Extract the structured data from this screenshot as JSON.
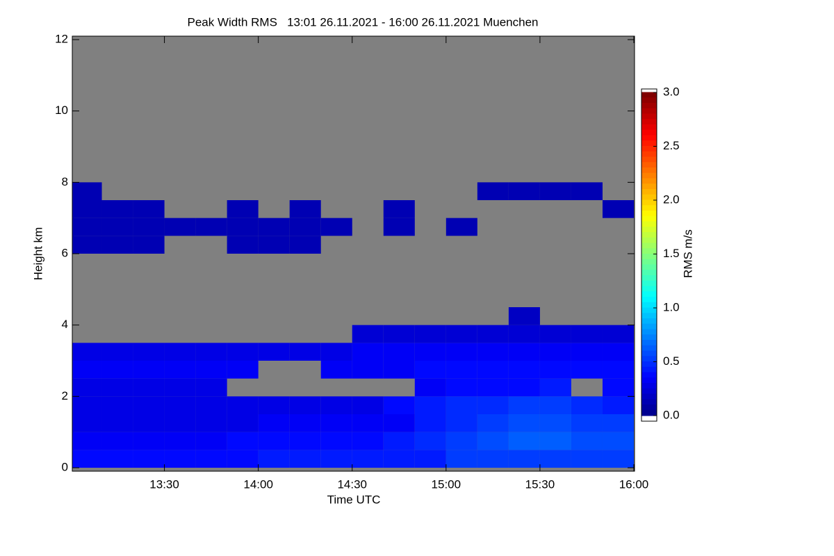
{
  "chart_data": {
    "type": "heatmap",
    "title": "Peak Width RMS   13:01 26.11.2021 - 16:00 26.11.2021 Muenchen",
    "x_label": "Time UTC",
    "y_label": "Height km",
    "colorbar_label": "RMS m/s",
    "background_color": "#808080",
    "colormap": "jet",
    "xlim": [
      13.0167,
      16.0
    ],
    "xticks": [
      {
        "value": 13.5,
        "label": "13:30"
      },
      {
        "value": 14.0,
        "label": "14:00"
      },
      {
        "value": 14.5,
        "label": "14:30"
      },
      {
        "value": 15.0,
        "label": "15:00"
      },
      {
        "value": 15.5,
        "label": "15:30"
      },
      {
        "value": 16.0,
        "label": "16:00"
      }
    ],
    "ylim": [
      0,
      12
    ],
    "yticks": [
      0,
      2,
      4,
      6,
      8,
      10,
      12
    ],
    "clim": [
      0,
      3
    ],
    "cticks": [
      {
        "value": 0,
        "label": "0.0"
      },
      {
        "value": 0.5,
        "label": "0.5"
      },
      {
        "value": 1,
        "label": "1.0"
      },
      {
        "value": 1.5,
        "label": "1.5"
      },
      {
        "value": 2,
        "label": "2.0"
      },
      {
        "value": 2.5,
        "label": "2.5"
      },
      {
        "value": 3,
        "label": "3.0"
      }
    ],
    "x": [
      13.0833,
      13.25,
      13.4167,
      13.5833,
      13.75,
      13.9167,
      14.0833,
      14.25,
      14.4167,
      14.5833,
      14.75,
      14.9167,
      15.0833,
      15.25,
      15.4167,
      15.5833,
      15.75,
      15.9167
    ],
    "y": [
      0.25,
      0.75,
      1.25,
      1.75,
      2.25,
      2.75,
      3.25,
      3.75,
      4.25,
      4.75,
      5.25,
      5.75,
      6.25,
      6.75,
      7.25,
      7.75
    ],
    "z": [
      [
        0.4,
        0.4,
        0.4,
        0.4,
        0.4,
        0.4,
        0.45,
        0.45,
        0.45,
        0.45,
        0.45,
        0.45,
        0.55,
        0.55,
        0.55,
        0.55,
        0.55,
        0.55
      ],
      [
        0.35,
        0.35,
        0.35,
        0.35,
        0.35,
        0.4,
        0.4,
        0.4,
        0.4,
        0.4,
        0.45,
        0.5,
        0.55,
        0.6,
        0.65,
        0.65,
        0.6,
        0.6
      ],
      [
        0.3,
        0.3,
        0.3,
        0.3,
        0.3,
        0.3,
        0.35,
        0.35,
        0.35,
        0.35,
        0.35,
        0.45,
        0.5,
        0.55,
        0.6,
        0.6,
        0.55,
        0.55
      ],
      [
        0.3,
        0.3,
        0.3,
        0.3,
        0.3,
        0.3,
        0.3,
        0.3,
        0.3,
        0.3,
        0.4,
        0.45,
        0.5,
        0.5,
        0.55,
        0.55,
        0.5,
        0.45
      ],
      [
        0.3,
        0.3,
        0.3,
        0.3,
        0.3,
        null,
        null,
        null,
        null,
        null,
        null,
        0.35,
        0.4,
        0.4,
        0.4,
        0.45,
        null,
        0.4
      ],
      [
        0.35,
        0.35,
        0.35,
        0.35,
        0.35,
        0.35,
        null,
        null,
        0.35,
        0.35,
        0.35,
        0.4,
        0.4,
        0.4,
        0.4,
        0.4,
        0.4,
        0.4
      ],
      [
        0.3,
        0.3,
        0.3,
        0.3,
        0.3,
        0.3,
        0.3,
        0.3,
        0.3,
        0.35,
        0.35,
        0.35,
        0.35,
        0.35,
        0.35,
        0.35,
        0.35,
        0.35
      ],
      [
        null,
        null,
        null,
        null,
        null,
        null,
        null,
        null,
        null,
        0.25,
        0.25,
        0.25,
        0.25,
        0.25,
        0.25,
        0.25,
        0.25,
        0.25
      ],
      [
        null,
        null,
        null,
        null,
        null,
        null,
        null,
        null,
        null,
        null,
        null,
        null,
        null,
        null,
        0.2,
        null,
        null,
        null
      ],
      [
        null,
        null,
        null,
        null,
        null,
        null,
        null,
        null,
        null,
        null,
        null,
        null,
        null,
        null,
        null,
        null,
        null,
        null
      ],
      [
        null,
        null,
        null,
        null,
        null,
        null,
        null,
        null,
        null,
        null,
        null,
        null,
        null,
        null,
        null,
        null,
        null,
        null
      ],
      [
        null,
        null,
        null,
        null,
        null,
        null,
        null,
        null,
        null,
        null,
        null,
        null,
        null,
        null,
        null,
        null,
        null,
        null
      ],
      [
        0.15,
        0.15,
        0.15,
        null,
        null,
        0.15,
        0.15,
        0.15,
        null,
        null,
        null,
        null,
        null,
        null,
        null,
        null,
        null,
        null
      ],
      [
        0.15,
        0.15,
        0.15,
        0.15,
        0.15,
        0.15,
        0.15,
        0.15,
        0.15,
        null,
        0.15,
        null,
        0.15,
        null,
        null,
        null,
        null,
        null
      ],
      [
        0.15,
        0.15,
        0.15,
        null,
        null,
        0.15,
        null,
        0.15,
        null,
        null,
        0.15,
        null,
        null,
        null,
        null,
        null,
        null,
        0.15
      ],
      [
        0.15,
        null,
        null,
        null,
        null,
        null,
        null,
        null,
        null,
        null,
        null,
        null,
        null,
        0.15,
        0.15,
        0.15,
        0.15,
        null
      ]
    ]
  }
}
